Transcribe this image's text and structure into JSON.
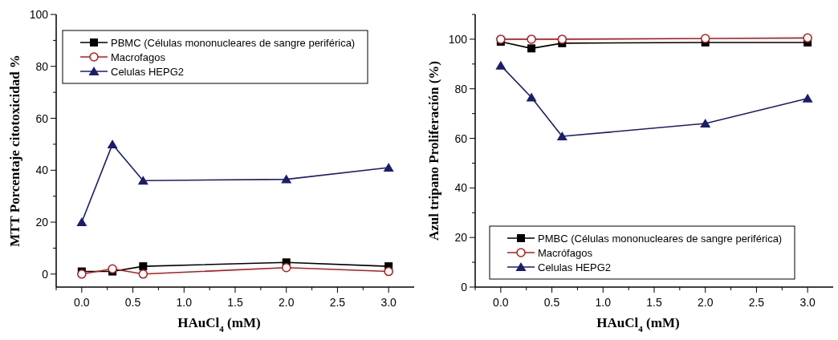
{
  "chart_data": [
    {
      "type": "line",
      "xlabel": "HAuCl$_{4}$ (mM)",
      "ylabel": "MTT Porcentaje citotoxicidad  %",
      "xlim": [
        -0.25,
        3.25
      ],
      "ylim": [
        -5,
        100
      ],
      "xticks": [
        {
          "value": -0.25,
          "label": null
        },
        {
          "value": 0,
          "label": "0.0"
        },
        {
          "value": 0.25,
          "label": null
        },
        {
          "value": 0.5,
          "label": "0.5"
        },
        {
          "value": 0.75,
          "label": null
        },
        {
          "value": 1,
          "label": "1.0"
        },
        {
          "value": 1.25,
          "label": null
        },
        {
          "value": 1.5,
          "label": "1.5"
        },
        {
          "value": 1.75,
          "label": null
        },
        {
          "value": 2,
          "label": "2.0"
        },
        {
          "value": 2.25,
          "label": null
        },
        {
          "value": 2.5,
          "label": "2.5"
        },
        {
          "value": 2.75,
          "label": null
        },
        {
          "value": 3,
          "label": "3.0"
        }
      ],
      "yticks": [
        0,
        {
          "value": 10,
          "label": null
        },
        20,
        {
          "value": 30,
          "label": null
        },
        40,
        {
          "value": 50,
          "label": null
        },
        60,
        {
          "value": 70,
          "label": null
        },
        80,
        {
          "value": 90,
          "label": null
        },
        100
      ],
      "x": [
        0,
        0.3,
        0.6,
        2,
        3
      ],
      "legend": "top left",
      "grid": false,
      "series": [
        {
          "name": "PBMC (Células mononucleares de sangre periférica)",
          "color": "#000000",
          "marker": "square",
          "values": [
            1,
            1,
            3,
            4.5,
            3
          ]
        },
        {
          "name": "Macrofagos",
          "color": "#b01c1c",
          "marker": "circle",
          "values": [
            0,
            2,
            0,
            2.5,
            1
          ]
        },
        {
          "name": "Celulas HEPG2",
          "color": "#1c1c6e",
          "marker": "triangle",
          "values": [
            20,
            50,
            36,
            36.5,
            41
          ]
        }
      ]
    },
    {
      "type": "line",
      "xlabel": "HAuCl$_{4}$ (mM)",
      "ylabel": "Azul tripano Proliferación (%)",
      "xlim": [
        -0.25,
        3.25
      ],
      "ylim": [
        0,
        110
      ],
      "xticks": [
        {
          "value": -0.25,
          "label": null
        },
        {
          "value": 0,
          "label": "0.0"
        },
        {
          "value": 0.25,
          "label": null
        },
        {
          "value": 0.5,
          "label": "0.5"
        },
        {
          "value": 0.75,
          "label": null
        },
        {
          "value": 1,
          "label": "1.0"
        },
        {
          "value": 1.25,
          "label": null
        },
        {
          "value": 1.5,
          "label": "1.5"
        },
        {
          "value": 1.75,
          "label": null
        },
        {
          "value": 2,
          "label": "2.0"
        },
        {
          "value": 2.25,
          "label": null
        },
        {
          "value": 2.5,
          "label": "2.5"
        },
        {
          "value": 2.75,
          "label": null
        },
        {
          "value": 3,
          "label": "3.0"
        }
      ],
      "yticks": [
        0,
        {
          "value": 10,
          "label": null
        },
        20,
        {
          "value": 30,
          "label": null
        },
        40,
        {
          "value": 50,
          "label": null
        },
        60,
        {
          "value": 70,
          "label": null
        },
        80,
        {
          "value": 90,
          "label": null
        },
        100,
        {
          "value": 110,
          "label": null
        }
      ],
      "x": [
        0,
        0.3,
        0.6,
        2,
        3
      ],
      "legend": "bottom",
      "grid": false,
      "series": [
        {
          "name": "PMBC (Células mononucleares de sangre periférica)",
          "color": "#000000",
          "marker": "square",
          "values": [
            99,
            96.3,
            98.4,
            98.7,
            98.7
          ]
        },
        {
          "name": "Macrófagos",
          "color": "#b01c1c",
          "marker": "circle",
          "values": [
            100,
            100,
            100,
            100.3,
            100.5
          ]
        },
        {
          "name": "Celulas HEPG2",
          "color": "#1c1c6e",
          "marker": "triangle",
          "values": [
            89.4,
            76.5,
            60.8,
            66,
            76.1
          ]
        }
      ]
    }
  ]
}
